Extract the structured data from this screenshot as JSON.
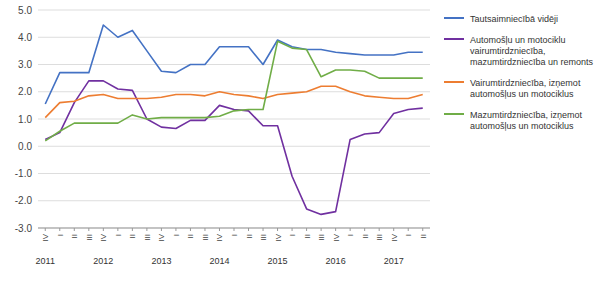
{
  "chart_data": {
    "type": "line",
    "categories": [
      "IV",
      "I",
      "II",
      "III",
      "IV",
      "I",
      "II",
      "III",
      "IV",
      "I",
      "II",
      "III",
      "IV",
      "I",
      "II",
      "III",
      "IV",
      "I",
      "II",
      "III",
      "IV",
      "I",
      "II",
      "III",
      "IV",
      "I",
      "II"
    ],
    "series": [
      {
        "name": "Tautsaimniecībā vidēji",
        "color": "#4472C4",
        "values": [
          1.55,
          2.7,
          2.7,
          2.7,
          4.45,
          4.0,
          4.25,
          3.5,
          2.75,
          2.7,
          3.0,
          3.0,
          3.65,
          3.65,
          3.65,
          3.0,
          3.9,
          3.65,
          3.55,
          3.55,
          3.45,
          3.4,
          3.35,
          3.35,
          3.35,
          3.45,
          3.45
        ]
      },
      {
        "name": "Automošļu un motociklu\nvairumtirdzniecība,\nmazumtirdzniecība un remonts",
        "color": "#7030A0",
        "values": [
          0.25,
          0.5,
          1.6,
          2.4,
          2.4,
          2.1,
          2.05,
          1.0,
          0.7,
          0.65,
          0.95,
          0.95,
          1.5,
          1.35,
          1.3,
          0.75,
          0.75,
          -1.1,
          -2.3,
          -2.5,
          -2.4,
          0.25,
          0.45,
          0.5,
          1.2,
          1.35,
          1.4
        ]
      },
      {
        "name": "Vairumtirdzniecība, izņemot\nautomošļus un motociklus",
        "color": "#ED7D31",
        "values": [
          1.05,
          1.6,
          1.65,
          1.85,
          1.9,
          1.75,
          1.75,
          1.75,
          1.8,
          1.9,
          1.9,
          1.85,
          2.0,
          1.9,
          1.85,
          1.75,
          1.9,
          1.95,
          2.0,
          2.2,
          2.2,
          2.0,
          1.85,
          1.8,
          1.75,
          1.75,
          1.9
        ]
      },
      {
        "name": "Mazumtirdzniecība, izņemot\nautomošļus un motociklus",
        "color": "#70AD47",
        "values": [
          0.2,
          0.55,
          0.85,
          0.85,
          0.85,
          0.85,
          1.15,
          1.0,
          1.05,
          1.05,
          1.05,
          1.05,
          1.1,
          1.3,
          1.35,
          1.35,
          3.85,
          3.6,
          3.55,
          2.55,
          2.8,
          2.8,
          2.75,
          2.5,
          2.5,
          2.5,
          2.5
        ]
      }
    ],
    "ylim": [
      -3.0,
      5.0
    ],
    "yticks": [
      {
        "value": -3.0,
        "label": "-3.0"
      },
      {
        "value": -2.0,
        "label": "-2.0"
      },
      {
        "value": -1.0,
        "label": "-1.0"
      },
      {
        "value": 0.0,
        "label": "0.0"
      },
      {
        "value": 1.0,
        "label": "1.0"
      },
      {
        "value": 2.0,
        "label": "2.0"
      },
      {
        "value": 3.0,
        "label": "3.0"
      },
      {
        "value": 4.0,
        "label": "4.0"
      },
      {
        "value": 5.0,
        "label": "5.0"
      }
    ],
    "annotations": [
      {
        "text": "2011",
        "x": 0
      },
      {
        "text": "2012",
        "x": 4
      },
      {
        "text": "2013",
        "x": 8
      },
      {
        "text": "2014",
        "x": 12
      },
      {
        "text": "2015",
        "x": 16
      },
      {
        "text": "2016",
        "x": 20
      },
      {
        "text": "2017",
        "x": 24
      }
    ],
    "grid": true,
    "legend": "right"
  }
}
